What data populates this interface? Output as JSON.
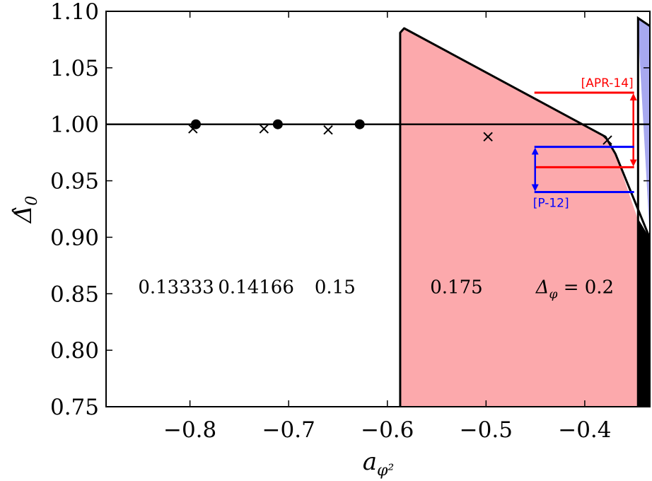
{
  "chart_data": {
    "type": "scatter",
    "title": "",
    "xlabel": "a",
    "xlabel_sub": "φ²",
    "ylabel": "Δ̂",
    "ylabel_sub": "0",
    "xlim": [
      -0.885,
      -0.334
    ],
    "ylim": [
      0.75,
      1.1
    ],
    "xticks": [
      {
        "value": -0.8,
        "label": "−0.8"
      },
      {
        "value": -0.7,
        "label": "−0.7"
      },
      {
        "value": -0.6,
        "label": "−0.6"
      },
      {
        "value": -0.5,
        "label": "−0.5"
      },
      {
        "value": -0.4,
        "label": "−0.4"
      }
    ],
    "yticks": [
      {
        "value": 0.75,
        "label": "0.75"
      },
      {
        "value": 0.8,
        "label": "0.80"
      },
      {
        "value": 0.85,
        "label": "0.85"
      },
      {
        "value": 0.9,
        "label": "0.90"
      },
      {
        "value": 0.95,
        "label": "0.95"
      },
      {
        "value": 1.0,
        "label": "1.00"
      },
      {
        "value": 1.05,
        "label": "1.05"
      },
      {
        "value": 1.1,
        "label": "1.10"
      }
    ],
    "reference_line": {
      "y": 1.0,
      "color": "#000000"
    },
    "series": [
      {
        "marker": "circle",
        "color": "#000000",
        "points": [
          {
            "x": -0.794,
            "y": 1.0
          },
          {
            "x": -0.711,
            "y": 1.0
          },
          {
            "x": -0.628,
            "y": 1.0
          }
        ]
      },
      {
        "marker": "cross",
        "color": "#000000",
        "points": [
          {
            "x": -0.797,
            "y": 0.996
          },
          {
            "x": -0.725,
            "y": 0.996
          },
          {
            "x": -0.66,
            "y": 0.995
          },
          {
            "x": -0.498,
            "y": 0.989
          },
          {
            "x": -0.377,
            "y": 0.986
          }
        ]
      }
    ],
    "regions": [
      {
        "name": "pink",
        "color": "#fca9ac",
        "boundary": [
          [
            -0.587,
            0.75
          ],
          [
            -0.587,
            1.081
          ],
          [
            -0.583,
            1.085
          ],
          [
            -0.379,
            0.989
          ],
          [
            -0.369,
            0.974
          ],
          [
            -0.347,
            0.918
          ],
          [
            -0.347,
            0.75
          ]
        ]
      },
      {
        "name": "black",
        "color": "#000000",
        "boundary": [
          [
            -0.347,
            0.75
          ],
          [
            -0.347,
            0.918
          ],
          [
            -0.334,
            0.899
          ],
          [
            -0.334,
            0.75
          ]
        ]
      },
      {
        "name": "blue",
        "color": "#a7a8ef",
        "boundary": [
          [
            -0.346,
            1.083
          ],
          [
            -0.346,
            1.094
          ],
          [
            -0.334,
            1.087
          ],
          [
            -0.334,
            0.899
          ]
        ]
      }
    ],
    "boundary_curve": [
      [
        -0.587,
        0.75
      ],
      [
        -0.587,
        1.081
      ],
      [
        -0.583,
        1.085
      ],
      [
        -0.379,
        0.989
      ],
      [
        -0.369,
        0.974
      ],
      [
        -0.334,
        0.899
      ]
    ],
    "blue_strip_edge": [
      [
        -0.346,
        0.75
      ],
      [
        -0.346,
        1.094
      ],
      [
        -0.334,
        1.087
      ]
    ],
    "annotations": [
      {
        "label": "[APR-14]",
        "color": "#ff0000",
        "y_top": 1.028,
        "y_bottom": 0.962,
        "x_start": -0.451,
        "x_end": -0.35,
        "label_pos": "above"
      },
      {
        "label": "[P-12]",
        "color": "#0000ff",
        "y_top": 0.98,
        "y_bottom": 0.94,
        "x_start": -0.451,
        "x_end": -0.35,
        "label_pos": "below"
      }
    ],
    "region_labels": [
      {
        "text": "0.13333",
        "x": -0.814,
        "y": 0.856
      },
      {
        "text": "0.14166",
        "x": -0.733,
        "y": 0.856
      },
      {
        "text": "0.15",
        "x": -0.653,
        "y": 0.856
      },
      {
        "text": "0.175",
        "x": -0.53,
        "y": 0.856
      },
      {
        "text": "Δ",
        "sub": "φ",
        "tail": " = 0.2",
        "x": -0.41,
        "y": 0.856
      }
    ]
  }
}
